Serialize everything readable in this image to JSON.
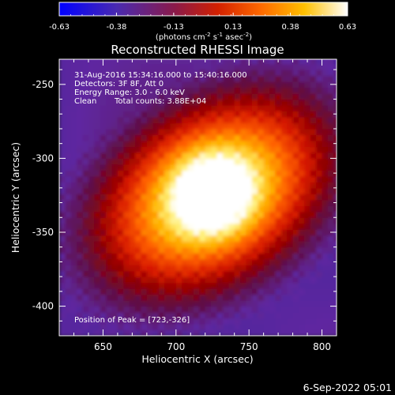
{
  "chart_data": {
    "type": "heatmap",
    "title": "Reconstructed RHESSI Image",
    "xlabel": "Heliocentric X (arcsec)",
    "ylabel": "Heliocentric Y (arcsec)",
    "xlim": [
      620,
      810
    ],
    "ylim": [
      -420,
      -233
    ],
    "x_ticks": [
      650,
      700,
      750,
      800
    ],
    "y_ticks": [
      -250,
      -300,
      -350,
      -400
    ],
    "x_minor_step": 10,
    "y_minor_step": 10,
    "colorbar": {
      "range": [
        -0.63,
        0.63
      ],
      "ticks": [
        "-0.63",
        "-0.38",
        "-0.13",
        "0.13",
        "0.38",
        "0.63"
      ],
      "label_prefix": "(photons cm",
      "label_exp1": "-2",
      "label_mid": " s",
      "label_exp2": "-1",
      "label_unit": " asec",
      "label_exp3": "-2",
      "label_suffix": ")",
      "colormap": "blue-purple-red-orange-yellow-white"
    },
    "annotations": {
      "time_range": "31-Aug-2016 15:34:16.000 to 15:40:16.000",
      "detectors": "Detectors: 3F 8F, Att 0",
      "energy_range": "Energy Range: 3.0 - 6.0 keV",
      "algorithm": "Clean",
      "total_counts": "Total counts: 3.88E+04",
      "peak_position": "Position of Peak = [723,-326]"
    },
    "peak": [
      723,
      -326
    ],
    "grid": false,
    "legend": "none"
  },
  "footer": {
    "timestamp": "6-Sep-2022 05:01"
  }
}
